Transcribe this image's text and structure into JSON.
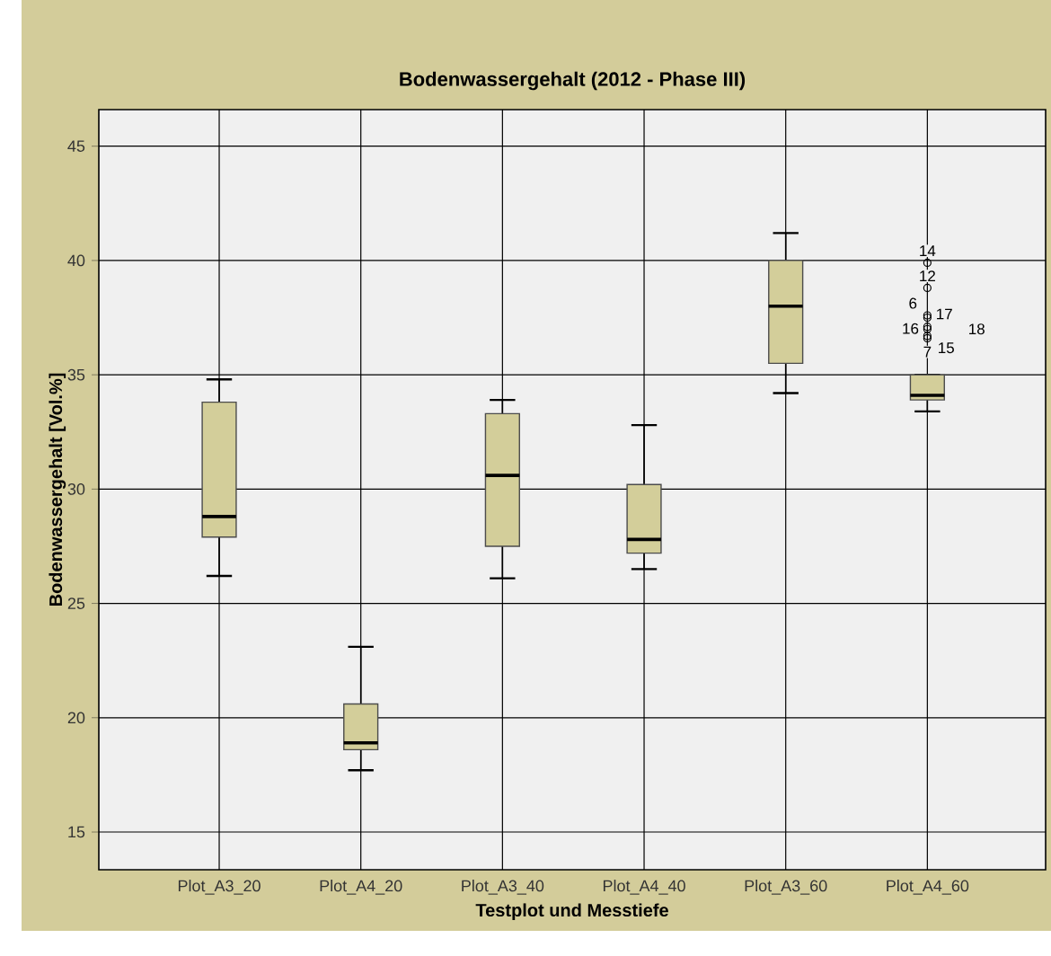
{
  "chart_data": {
    "type": "box",
    "title": "Bodenwassergehalt (2012 - Phase III)",
    "xlabel": "Testplot und Messtiefe",
    "ylabel": "Bodenwassergehalt [Vol.%]",
    "categories": [
      "Plot_A3_20",
      "Plot_A4_20",
      "Plot_A3_40",
      "Plot_A4_40",
      "Plot_A3_60",
      "Plot_A4_60"
    ],
    "color": "#d3ce9a",
    "boxes": [
      {
        "low": 26.2,
        "q1": 27.9,
        "median": 28.8,
        "q3": 33.8,
        "high": 34.8
      },
      {
        "low": 17.7,
        "q1": 18.6,
        "median": 18.9,
        "q3": 20.6,
        "high": 23.1
      },
      {
        "low": 26.1,
        "q1": 27.5,
        "median": 30.6,
        "q3": 33.3,
        "high": 33.9
      },
      {
        "low": 26.5,
        "q1": 27.2,
        "median": 27.8,
        "q3": 30.2,
        "high": 32.8
      },
      {
        "low": 34.2,
        "q1": 35.5,
        "median": 38.0,
        "q3": 40.0,
        "high": 41.2
      },
      {
        "low": 33.4,
        "q1": 33.9,
        "median": 34.1,
        "q3": 35.0,
        "high": 35.0,
        "outliers": [
          39.9,
          38.8,
          37.6,
          37.5,
          37.1,
          37.0,
          36.6,
          36.7
        ]
      }
    ],
    "annotations": [
      "14",
      "12",
      "6",
      "17",
      "16",
      "18",
      "7",
      "15"
    ],
    "ylim": [
      13.35,
      46.6
    ],
    "yticks": [
      15,
      20,
      25,
      30,
      35,
      40,
      45
    ],
    "grid": true
  }
}
